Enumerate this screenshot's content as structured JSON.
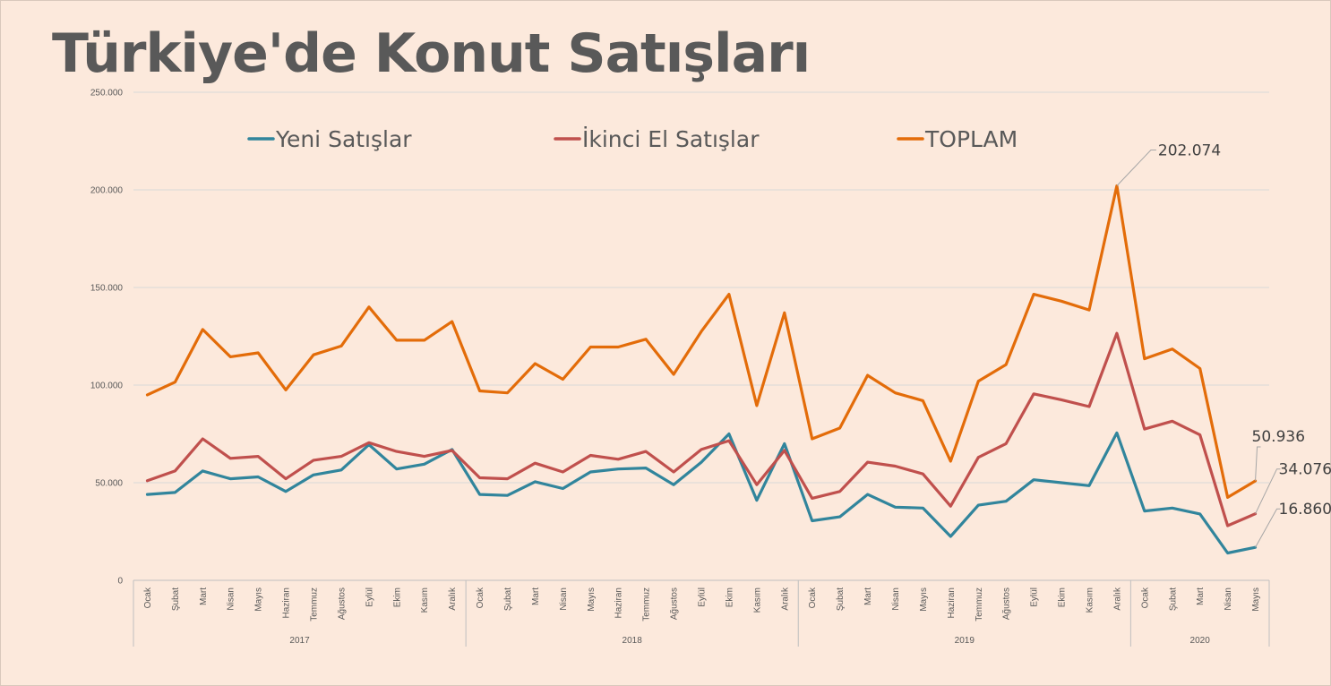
{
  "title": "Türkiye'de Konut Satışları",
  "chart_data": {
    "type": "line",
    "title": "Türkiye'de Konut Satışları",
    "xlabel": "",
    "ylabel": "",
    "ylim": [
      0,
      250000
    ],
    "yticks": [
      0,
      50000,
      100000,
      150000,
      200000,
      250000
    ],
    "ytick_labels": [
      "0",
      "50.000",
      "100.000",
      "150.000",
      "200.000",
      "250.000"
    ],
    "grid": true,
    "legend_position": "top",
    "years": [
      {
        "label": "2017",
        "months": 12
      },
      {
        "label": "2018",
        "months": 12
      },
      {
        "label": "2019",
        "months": 12
      },
      {
        "label": "2020",
        "months": 5
      }
    ],
    "categories": [
      "Ocak",
      "Şubat",
      "Mart",
      "Nisan",
      "Mayıs",
      "Haziran",
      "Temmuz",
      "Ağustos",
      "Eylül",
      "Ekim",
      "Kasım",
      "Aralık",
      "Ocak",
      "Şubat",
      "Mart",
      "Nisan",
      "Mayıs",
      "Haziran",
      "Temmuz",
      "Ağustos",
      "Eylül",
      "Ekim",
      "Kasım",
      "Aralık",
      "Ocak",
      "Şubat",
      "Mart",
      "Nisan",
      "Mayıs",
      "Haziran",
      "Temmuz",
      "Ağustos",
      "Eylül",
      "Ekim",
      "Kasım",
      "Aralık",
      "Ocak",
      "Şubat",
      "Mart",
      "Nisan",
      "Mayıs"
    ],
    "series": [
      {
        "name": "Yeni Satışlar",
        "color": "#31859c",
        "values": [
          44000,
          45000,
          56000,
          52000,
          53000,
          45500,
          54000,
          56500,
          69500,
          57000,
          59500,
          67000,
          44000,
          43500,
          50500,
          47000,
          55500,
          57000,
          57500,
          49000,
          60500,
          75000,
          41000,
          70000,
          30500,
          32500,
          44000,
          37500,
          37000,
          22500,
          38500,
          40500,
          51500,
          50000,
          48500,
          75500,
          35500,
          37000,
          34000,
          14000,
          16860
        ]
      },
      {
        "name": "İkinci El Satışlar",
        "color": "#c0504d",
        "values": [
          51000,
          56000,
          72500,
          62500,
          63500,
          52000,
          61500,
          63500,
          70500,
          66000,
          63500,
          66500,
          52500,
          52000,
          60000,
          55500,
          64000,
          62000,
          66000,
          55500,
          67000,
          71500,
          49000,
          66500,
          42000,
          45500,
          60500,
          58500,
          54500,
          38000,
          63000,
          70000,
          95500,
          92500,
          89000,
          126500,
          77500,
          81500,
          74500,
          28000,
          34076
        ]
      },
      {
        "name": "TOPLAM",
        "color": "#e36c09",
        "values": [
          95000,
          101500,
          128500,
          114500,
          116500,
          97500,
          115500,
          120000,
          140000,
          123000,
          123000,
          132500,
          97000,
          96000,
          111000,
          103000,
          119500,
          119500,
          123500,
          105500,
          127500,
          146500,
          89500,
          137000,
          72500,
          78000,
          105000,
          96000,
          92000,
          61000,
          102000,
          110500,
          146500,
          143000,
          138500,
          202074,
          113500,
          118500,
          108500,
          42500,
          50936
        ]
      }
    ],
    "data_labels": [
      {
        "series": "TOPLAM",
        "index": 35,
        "text": "202.074"
      },
      {
        "series": "TOPLAM",
        "index": 40,
        "text": "50.936"
      },
      {
        "series": "İkinci El Satışlar",
        "index": 40,
        "text": "34.076"
      },
      {
        "series": "Yeni Satışlar",
        "index": 40,
        "text": "16.860"
      }
    ]
  }
}
